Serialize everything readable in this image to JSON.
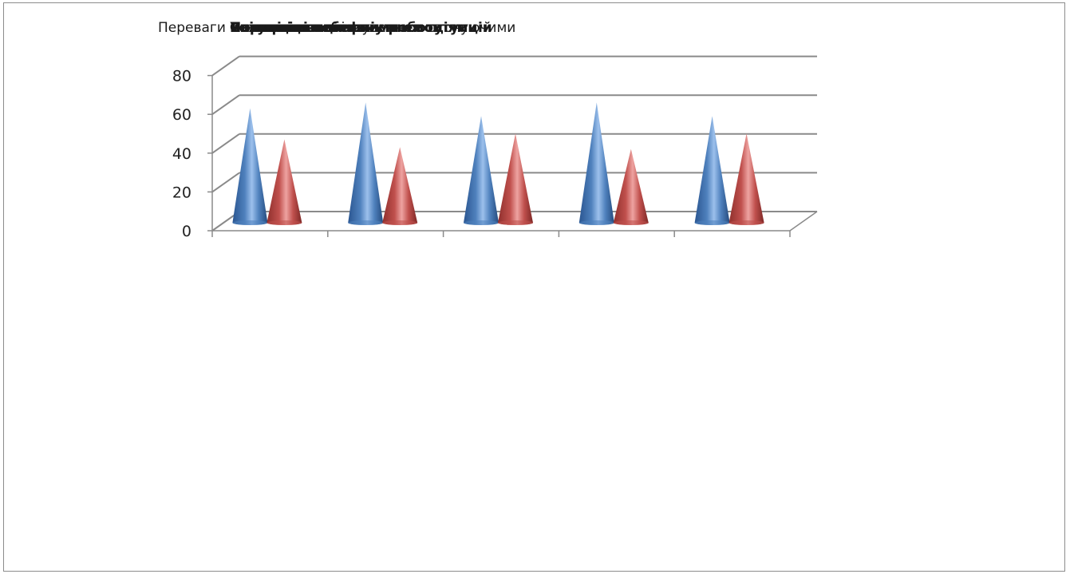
{
  "chart_data": {
    "type": "bar",
    "shape": "cone-3d",
    "title_layers": [
      "Переваги позитивного спілкування з оточуючими",
      "Вплив на соціальну роботу",
      "Розвиток навичок",
      "Співпраця",
      "Самооцінка",
      "Управління власними емоціями",
      "Позитивні аспекти",
      "Уникнення конфліктних ситуацій",
      "Розуміння себе"
    ],
    "categories": [
      "",
      "",
      "",
      "",
      ""
    ],
    "series": [
      {
        "values": [
          59,
          62,
          55,
          62,
          55
        ],
        "color": "#4f81bd"
      },
      {
        "values": [
          43,
          39,
          46,
          38,
          46
        ],
        "color": "#c0504d"
      }
    ],
    "ylim": [
      0,
      80
    ],
    "yticks": [
      "0",
      "20",
      "40",
      "60",
      "80"
    ],
    "grid": true,
    "legend": "none"
  }
}
